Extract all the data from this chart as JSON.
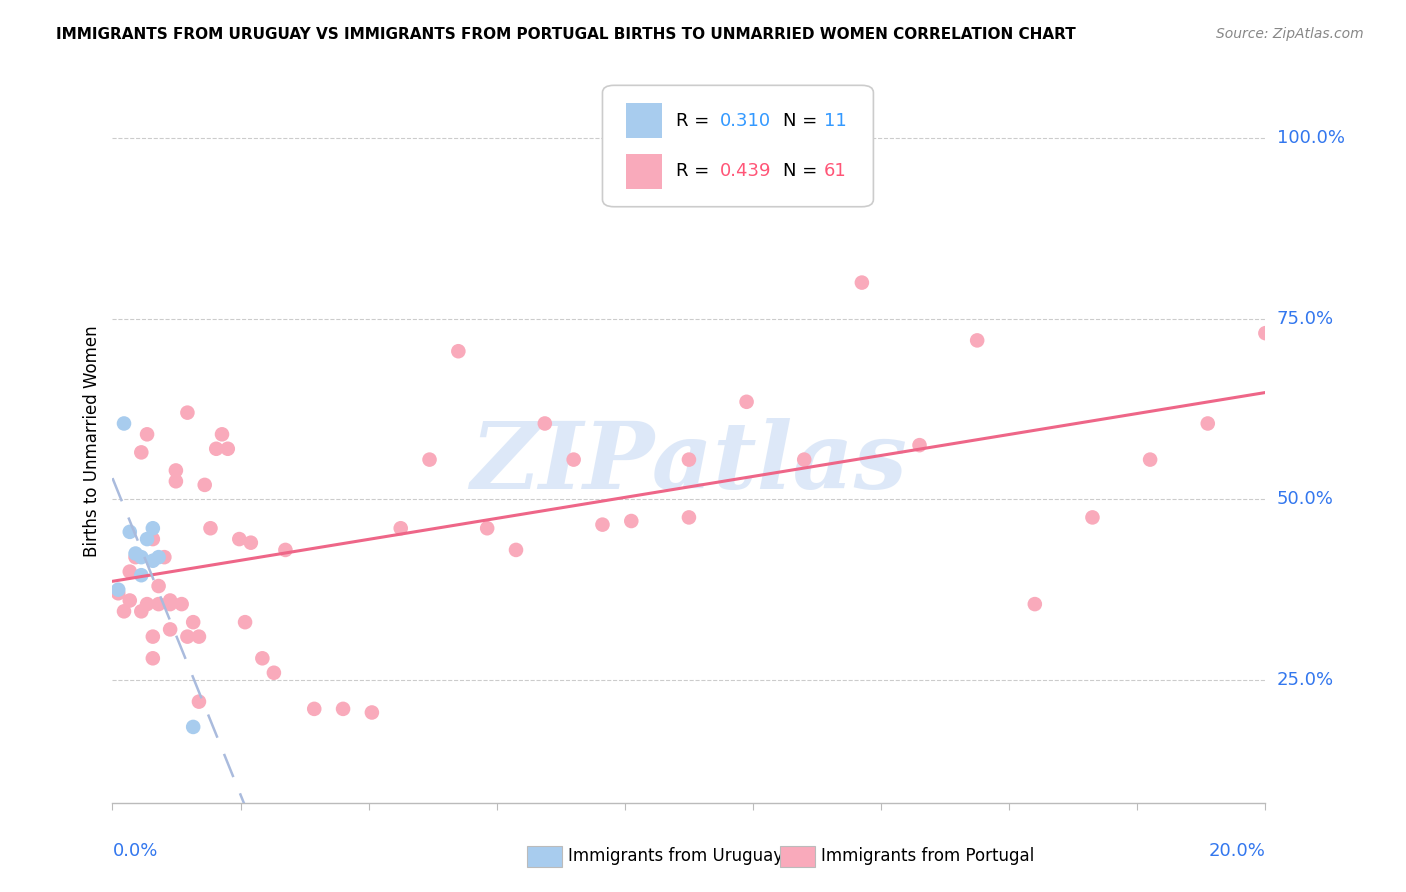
{
  "title": "IMMIGRANTS FROM URUGUAY VS IMMIGRANTS FROM PORTUGAL BIRTHS TO UNMARRIED WOMEN CORRELATION CHART",
  "source": "Source: ZipAtlas.com",
  "ylabel": "Births to Unmarried Women",
  "ytick_labels": [
    "100.0%",
    "75.0%",
    "50.0%",
    "25.0%"
  ],
  "ytick_positions": [
    1.0,
    0.75,
    0.5,
    0.25
  ],
  "xlim": [
    0.0,
    0.2
  ],
  "ylim": [
    0.08,
    1.08
  ],
  "R_uruguay": 0.31,
  "N_uruguay": 11,
  "R_portugal": 0.439,
  "N_portugal": 61,
  "color_uruguay": "#A8CCEE",
  "color_portugal": "#F9AABB",
  "trendline_uruguay_color": "#AABBDD",
  "trendline_portugal_color": "#EE6688",
  "legend_val_color_uruguay": "#3399FF",
  "legend_val_color_portugal": "#FF5577",
  "watermark": "ZIPatlas",
  "uruguay_x": [
    0.001,
    0.002,
    0.003,
    0.004,
    0.005,
    0.005,
    0.006,
    0.007,
    0.007,
    0.008,
    0.014
  ],
  "uruguay_y": [
    0.375,
    0.605,
    0.455,
    0.425,
    0.395,
    0.42,
    0.445,
    0.46,
    0.415,
    0.42,
    0.185
  ],
  "portugal_x": [
    0.001,
    0.002,
    0.003,
    0.003,
    0.004,
    0.005,
    0.005,
    0.006,
    0.006,
    0.007,
    0.007,
    0.007,
    0.008,
    0.008,
    0.009,
    0.01,
    0.01,
    0.01,
    0.011,
    0.011,
    0.012,
    0.013,
    0.013,
    0.014,
    0.015,
    0.015,
    0.016,
    0.017,
    0.018,
    0.019,
    0.02,
    0.022,
    0.023,
    0.024,
    0.026,
    0.028,
    0.03,
    0.035,
    0.04,
    0.045,
    0.05,
    0.055,
    0.06,
    0.065,
    0.07,
    0.075,
    0.08,
    0.085,
    0.09,
    0.1,
    0.11,
    0.12,
    0.13,
    0.14,
    0.15,
    0.16,
    0.17,
    0.18,
    0.19,
    0.2,
    0.1
  ],
  "portugal_y": [
    0.37,
    0.345,
    0.36,
    0.4,
    0.42,
    0.345,
    0.565,
    0.355,
    0.59,
    0.28,
    0.31,
    0.445,
    0.355,
    0.38,
    0.42,
    0.355,
    0.36,
    0.32,
    0.525,
    0.54,
    0.355,
    0.62,
    0.31,
    0.33,
    0.22,
    0.31,
    0.52,
    0.46,
    0.57,
    0.59,
    0.57,
    0.445,
    0.33,
    0.44,
    0.28,
    0.26,
    0.43,
    0.21,
    0.21,
    0.205,
    0.46,
    0.555,
    0.705,
    0.46,
    0.43,
    0.605,
    0.555,
    0.465,
    0.47,
    0.555,
    0.635,
    0.555,
    0.8,
    0.575,
    0.72,
    0.355,
    0.475,
    0.555,
    0.605,
    0.73,
    0.475
  ]
}
